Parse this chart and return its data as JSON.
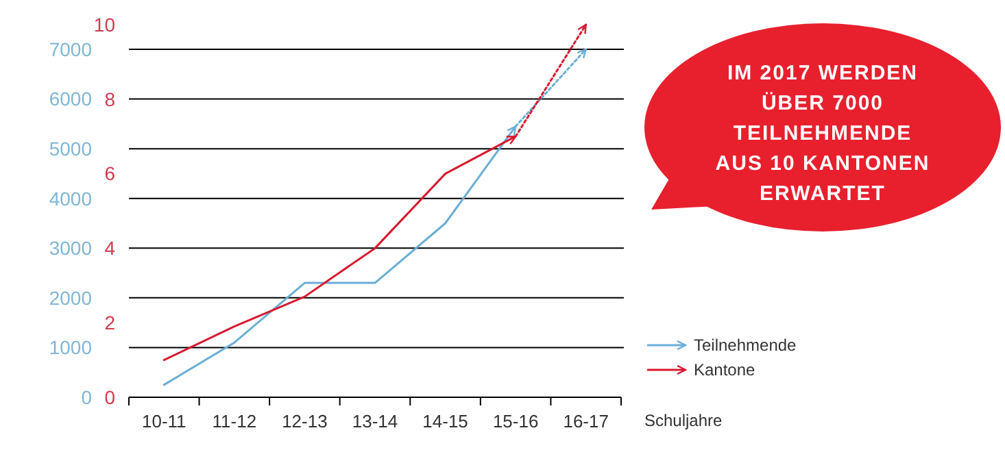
{
  "chart_data": {
    "type": "line",
    "xlabel": "Schuljahre",
    "categories": [
      "10-11",
      "11-12",
      "12-13",
      "13-14",
      "14-15",
      "15-16",
      "16-17"
    ],
    "series": [
      {
        "name": "Teilnehmende",
        "color": "#6aaed6",
        "values": [
          250,
          1100,
          2300,
          2300,
          3500,
          5450,
          null
        ]
      },
      {
        "name": "Kantone",
        "color": "#d7192f",
        "axis": "y2",
        "values": [
          1,
          1.9,
          2.7,
          4,
          6,
          7,
          null
        ]
      },
      {
        "color": "#6aaed6",
        "line_style": "dotted",
        "values": [
          null,
          null,
          null,
          null,
          null,
          5450,
          7000
        ]
      },
      {
        "color": "#d7192f",
        "axis": "y2",
        "line_style": "dotted",
        "values": [
          null,
          null,
          null,
          null,
          null,
          7,
          10
        ]
      }
    ],
    "ylim": [
      0,
      7000
    ],
    "yticks": [
      0,
      1000,
      2000,
      3000,
      4000,
      5000,
      6000,
      7000
    ],
    "y2lim": [
      0,
      10
    ],
    "y2ticks": [
      0,
      2,
      4,
      6,
      8,
      10
    ],
    "grid": "y",
    "legend": "right",
    "marker": "none",
    "line_style": "solid",
    "annotations": [
      "IM 2017 WERDEN\nÜBER 7000\nTEILNEHMENDE\nAUS 10 KANTONEN\nERWARTET"
    ]
  }
}
